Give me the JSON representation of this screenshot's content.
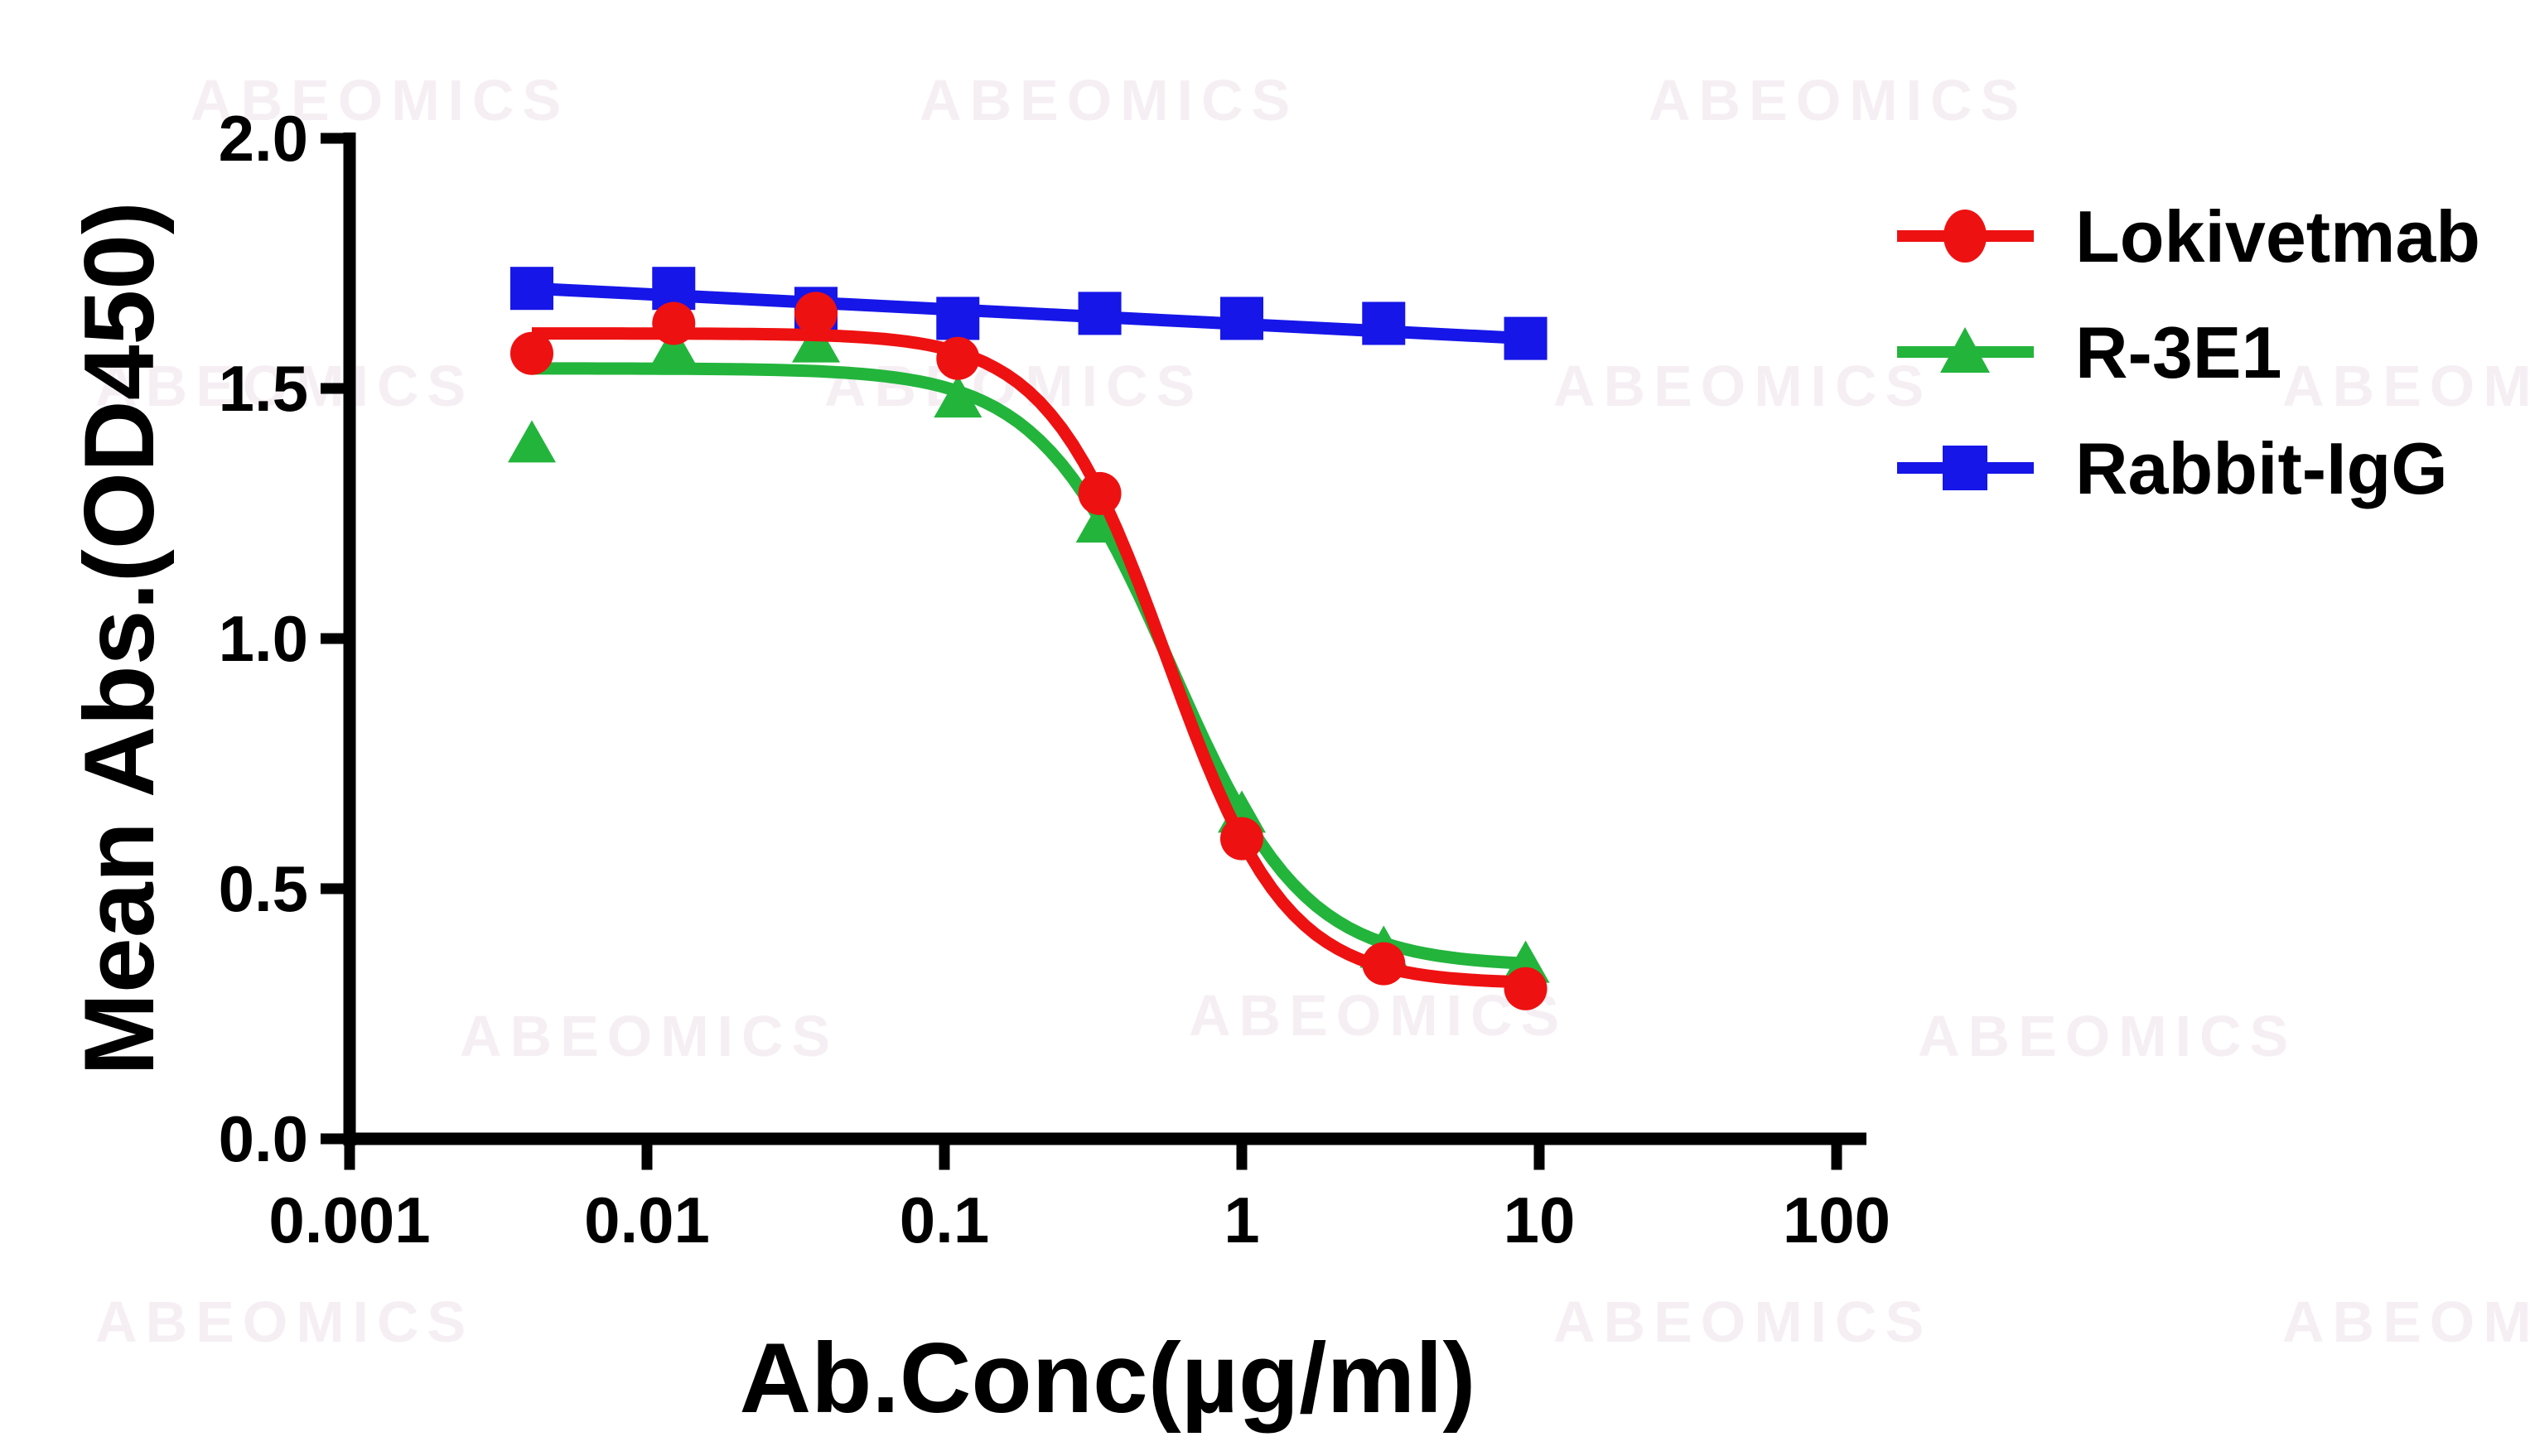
{
  "watermark": "ABEOMICS",
  "chart_data": {
    "type": "line",
    "title": "",
    "xlabel": "Ab.Conc(µg/ml)",
    "ylabel": "Mean Abs.(OD450)",
    "x_scale": "log10",
    "xlim": [
      0.001,
      100
    ],
    "ylim": [
      0.0,
      2.0
    ],
    "grid": false,
    "legend_position": "upper-right-outside",
    "x_ticks": [
      0.001,
      0.01,
      0.1,
      1,
      10,
      100
    ],
    "x_tick_labels": [
      "0.001",
      "0.01",
      "0.1",
      "1",
      "10",
      "100"
    ],
    "y_ticks": [
      0.0,
      0.5,
      1.0,
      1.5,
      2.0
    ],
    "y_tick_labels": [
      "0.0",
      "0.5",
      "1.0",
      "1.5",
      "2.0"
    ],
    "x": [
      0.0041,
      0.0123,
      0.037,
      0.111,
      0.333,
      1,
      3,
      9
    ],
    "series": [
      {
        "name": "Lokivetmab",
        "color": "#ee1111",
        "marker": "circle",
        "values": [
          1.57,
          1.63,
          1.65,
          1.56,
          1.29,
          0.6,
          0.35,
          0.3
        ],
        "fit": {
          "kind": "4pl",
          "top": 1.61,
          "bottom": 0.31,
          "ec50": 0.56,
          "hill": 2.17
        }
      },
      {
        "name": "R-3E1",
        "color": "#23b43c",
        "marker": "triangle",
        "values": [
          1.39,
          1.58,
          1.59,
          1.48,
          1.23,
          0.65,
          0.38,
          0.35
        ],
        "fit": {
          "kind": "4pl",
          "top": 1.54,
          "bottom": 0.345,
          "ec50": 0.58,
          "hill": 1.95
        }
      },
      {
        "name": "Rabbit-IgG",
        "color": "#1616e8",
        "marker": "square",
        "values": [
          1.7,
          1.7,
          1.66,
          1.64,
          1.65,
          1.64,
          1.63,
          1.6
        ],
        "fit": {
          "kind": "linear"
        }
      }
    ]
  }
}
